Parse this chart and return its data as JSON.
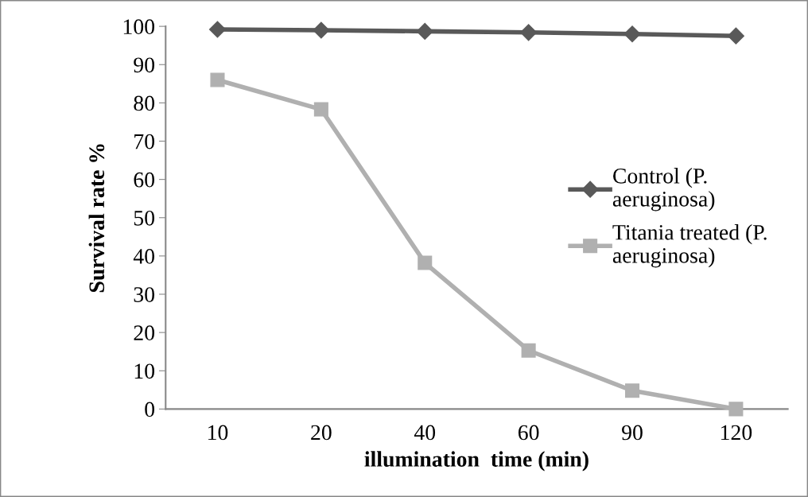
{
  "chart_data": {
    "type": "line",
    "xlabel": "illumination  time (min)",
    "ylabel": "Survival rate %",
    "categories": [
      "10",
      "20",
      "40",
      "60",
      "90",
      "120"
    ],
    "series": [
      {
        "name": "Control (P. aeruginosa)",
        "color": "#595959",
        "marker": "diamond",
        "values": [
          99.2,
          99.0,
          98.7,
          98.4,
          98.0,
          97.5
        ]
      },
      {
        "name": "Titania treated (P. aeruginosa)",
        "color": "#b0b0b0",
        "marker": "square",
        "values": [
          86.0,
          78.3,
          38.2,
          15.3,
          4.8,
          0.0
        ]
      }
    ],
    "ylim": [
      0,
      100
    ],
    "yticks": [
      0,
      10,
      20,
      30,
      40,
      50,
      60,
      70,
      80,
      90,
      100
    ],
    "grid": false,
    "legend": "right",
    "line_style": "solid"
  }
}
